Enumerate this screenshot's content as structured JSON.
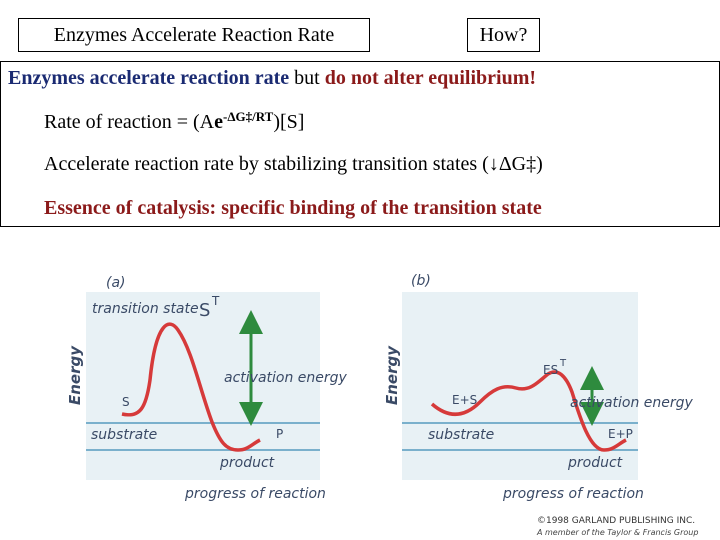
{
  "header": {
    "title_box": "Enzymes Accelerate Reaction Rate",
    "question_box": "How?"
  },
  "content": {
    "line1_part1": "Enzymes accelerate reaction rate",
    "line1_part2": " but ",
    "line1_part3": "do not alter equilibrium!",
    "line2_prefix": "Rate of reaction = (A",
    "line2_e": "e",
    "line2_exponent": "-ΔG‡/RT",
    "line2_suffix": ")[S]",
    "line3": "Accelerate reaction rate by stabilizing transition states (↓ΔG‡)",
    "line4": "Essence of catalysis: specific binding of the transition state"
  },
  "figure": {
    "panel_a": {
      "label": "(a)",
      "transition_state": "transition state",
      "ts_symbol": "S",
      "ts_mark": "T",
      "s_label": "S",
      "p_label": "P",
      "activation": "activation energy",
      "substrate": "substrate",
      "product": "product",
      "xlabel": "progress of reaction",
      "ylabel": "Energy"
    },
    "panel_b": {
      "label": "(b)",
      "es_symbol": "ES",
      "es_mark": "T",
      "es_label": "E+S",
      "ep_label": "E+P",
      "activation": "activation energy",
      "substrate": "substrate",
      "product": "product",
      "xlabel": "progress of reaction",
      "ylabel": "Energy"
    },
    "copyright_line1": "©1998 GARLAND PUBLISHING INC.",
    "copyright_line2": "A member of the Taylor & Francis Group",
    "colors": {
      "curve": "#d63a3a",
      "arrow": "#2e8b3e",
      "panel": "#e8f1f5",
      "line": "#7ab0cc"
    }
  }
}
